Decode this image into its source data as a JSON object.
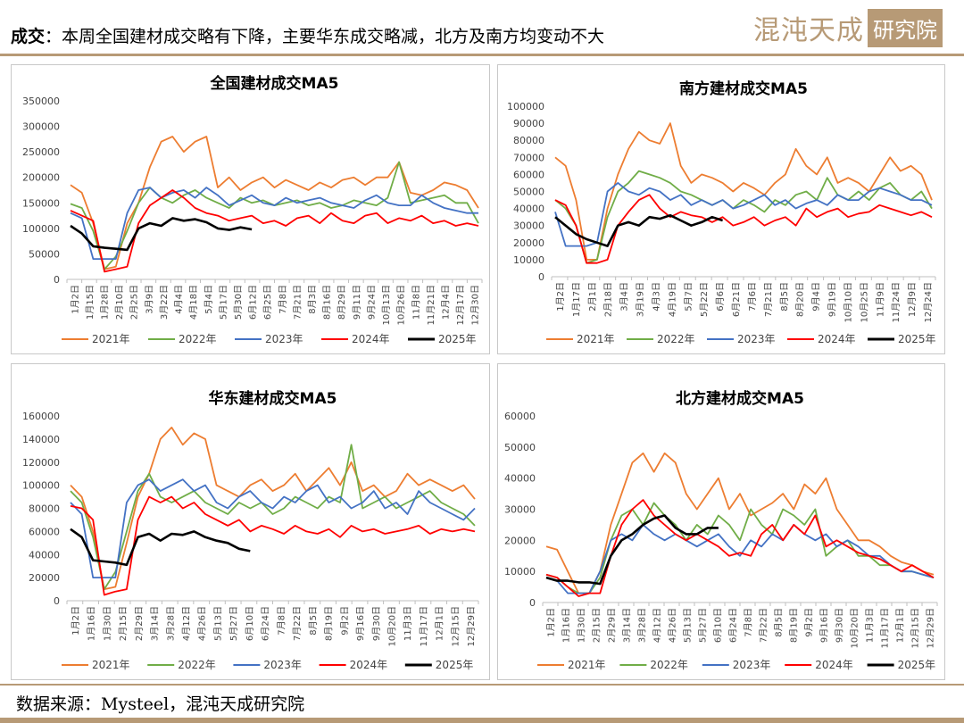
{
  "header": {
    "label": "成交",
    "colon": "：",
    "headline": "本周全国建材成交略有下降，主要华东成交略减，北方及南方均变动不大",
    "logo_text": "混沌天成",
    "logo_box": "研究院"
  },
  "footer": {
    "source": "数据来源：Mysteel，混沌天成研究院"
  },
  "colors": {
    "2021年": "#ed7d31",
    "2022年": "#70ad47",
    "2023年": "#4472c4",
    "2024年": "#ff0000",
    "2025年": "#000000",
    "accent": "#b79a76"
  },
  "chart_data": [
    {
      "type": "line",
      "title": "全国建材成交MA5",
      "ylim": [
        0,
        350000
      ],
      "yticks": [
        0,
        50000,
        100000,
        150000,
        200000,
        250000,
        300000,
        350000
      ],
      "x_tick_labels": [
        "1月2日",
        "1月15日",
        "1月28日",
        "2月10日",
        "2月25日",
        "3月9日",
        "3月22日",
        "4月4日",
        "4月18日",
        "5月4日",
        "5月17日",
        "5月30日",
        "6月12日",
        "6月25日",
        "7月8日",
        "7月21日",
        "8月3日",
        "8月16日",
        "8月29日",
        "9月11日",
        "9月24日",
        "10月13日",
        "10月26日",
        "11月8日",
        "11月21日",
        "12月4日",
        "12月17日",
        "12月30日"
      ],
      "legend": "bottom",
      "series": [
        {
          "name": "2021年",
          "values": [
            185000,
            170000,
            110000,
            20000,
            25000,
            110000,
            150000,
            220000,
            270000,
            280000,
            250000,
            270000,
            280000,
            180000,
            200000,
            175000,
            190000,
            200000,
            180000,
            195000,
            185000,
            175000,
            190000,
            180000,
            195000,
            200000,
            185000,
            200000,
            200000,
            230000,
            170000,
            165000,
            175000,
            190000,
            185000,
            175000,
            140000
          ]
        },
        {
          "name": "2022年",
          "values": [
            148000,
            140000,
            95000,
            20000,
            45000,
            95000,
            150000,
            180000,
            160000,
            150000,
            165000,
            175000,
            160000,
            150000,
            140000,
            160000,
            150000,
            155000,
            145000,
            150000,
            155000,
            145000,
            150000,
            140000,
            145000,
            155000,
            150000,
            145000,
            160000,
            230000,
            150000,
            155000,
            160000,
            165000,
            150000,
            150000,
            110000
          ]
        },
        {
          "name": "2023年",
          "values": [
            130000,
            120000,
            40000,
            40000,
            40000,
            130000,
            175000,
            180000,
            160000,
            170000,
            175000,
            160000,
            180000,
            165000,
            145000,
            155000,
            165000,
            150000,
            145000,
            160000,
            150000,
            155000,
            160000,
            150000,
            145000,
            140000,
            155000,
            165000,
            150000,
            145000,
            145000,
            165000,
            150000,
            140000,
            135000,
            130000,
            130000
          ]
        },
        {
          "name": "2024年",
          "values": [
            135000,
            125000,
            115000,
            15000,
            20000,
            25000,
            110000,
            145000,
            160000,
            175000,
            160000,
            140000,
            130000,
            125000,
            115000,
            120000,
            125000,
            110000,
            115000,
            105000,
            120000,
            125000,
            110000,
            130000,
            115000,
            110000,
            125000,
            130000,
            110000,
            120000,
            115000,
            125000,
            110000,
            115000,
            105000,
            110000,
            105000
          ]
        },
        {
          "name": "2025年",
          "values": [
            105000,
            90000,
            65000,
            62000,
            60000,
            58000,
            100000,
            110000,
            105000,
            120000,
            115000,
            118000,
            112000,
            100000,
            97000,
            102000,
            98000
          ]
        }
      ]
    },
    {
      "type": "line",
      "title": "南方建材成交MA5",
      "ylim": [
        0,
        100000
      ],
      "yticks": [
        0,
        10000,
        20000,
        30000,
        40000,
        50000,
        60000,
        70000,
        80000,
        90000,
        100000
      ],
      "x_tick_labels": [
        "1月2日",
        "1月17日",
        "2月1日",
        "2月18日",
        "3月4日",
        "3月19日",
        "4月3日",
        "4月19日",
        "5月7日",
        "5月22日",
        "6月6日",
        "6月21日",
        "7月6日",
        "7月21日",
        "8月5日",
        "8月20日",
        "9月4日",
        "9月19日",
        "10月10日",
        "10月25日",
        "11月9日",
        "11月24日",
        "12月9日",
        "12月24日"
      ],
      "legend": "bottom",
      "series": [
        {
          "name": "2021年",
          "values": [
            70000,
            65000,
            45000,
            10000,
            10000,
            40000,
            60000,
            75000,
            85000,
            80000,
            78000,
            90000,
            65000,
            55000,
            60000,
            58000,
            55000,
            50000,
            55000,
            52000,
            48000,
            55000,
            60000,
            75000,
            65000,
            60000,
            70000,
            55000,
            58000,
            55000,
            50000,
            60000,
            70000,
            62000,
            65000,
            60000,
            45000
          ]
        },
        {
          "name": "2022年",
          "values": [
            45000,
            40000,
            30000,
            8000,
            10000,
            35000,
            50000,
            55000,
            62000,
            60000,
            58000,
            55000,
            50000,
            48000,
            45000,
            42000,
            45000,
            40000,
            45000,
            42000,
            38000,
            45000,
            42000,
            48000,
            50000,
            45000,
            58000,
            48000,
            45000,
            50000,
            45000,
            52000,
            55000,
            48000,
            45000,
            50000,
            40000
          ]
        },
        {
          "name": "2023年",
          "values": [
            38000,
            18000,
            18000,
            18000,
            20000,
            50000,
            55000,
            50000,
            48000,
            52000,
            50000,
            45000,
            48000,
            42000,
            45000,
            42000,
            45000,
            40000,
            42000,
            45000,
            48000,
            42000,
            45000,
            40000,
            43000,
            45000,
            42000,
            48000,
            45000,
            45000,
            50000,
            52000,
            50000,
            48000,
            45000,
            45000,
            42000
          ]
        },
        {
          "name": "2024年",
          "values": [
            45000,
            42000,
            30000,
            8000,
            8000,
            10000,
            30000,
            38000,
            45000,
            48000,
            40000,
            35000,
            38000,
            36000,
            35000,
            32000,
            35000,
            30000,
            32000,
            35000,
            30000,
            33000,
            35000,
            30000,
            40000,
            35000,
            38000,
            40000,
            35000,
            37000,
            38000,
            42000,
            40000,
            38000,
            36000,
            38000,
            35000
          ]
        },
        {
          "name": "2025年",
          "values": [
            35000,
            30000,
            25000,
            22000,
            20000,
            18000,
            30000,
            32000,
            30000,
            35000,
            34000,
            36000,
            33000,
            30000,
            32000,
            35000,
            33000
          ]
        }
      ]
    },
    {
      "type": "line",
      "title": "华东建材成交MA5",
      "ylim": [
        0,
        160000
      ],
      "yticks": [
        0,
        20000,
        40000,
        60000,
        80000,
        100000,
        120000,
        140000,
        160000
      ],
      "x_tick_labels": [
        "1月2日",
        "1月16日",
        "1月30日",
        "2月15日",
        "2月29日",
        "3月14日",
        "3月28日",
        "4月12日",
        "4月26日",
        "5月13日",
        "5月27日",
        "6月10日",
        "6月24日",
        "7月8日",
        "7月22日",
        "8月5日",
        "8月19日",
        "9月2日",
        "9月16日",
        "9月30日",
        "10月20日",
        "11月3日",
        "11月17日",
        "12月1日",
        "12月15日",
        "12月29日"
      ],
      "legend": "bottom",
      "series": [
        {
          "name": "2021年",
          "values": [
            100000,
            90000,
            60000,
            10000,
            12000,
            50000,
            90000,
            110000,
            140000,
            150000,
            135000,
            145000,
            140000,
            100000,
            95000,
            90000,
            100000,
            105000,
            95000,
            100000,
            110000,
            95000,
            105000,
            115000,
            100000,
            120000,
            95000,
            100000,
            90000,
            95000,
            110000,
            100000,
            105000,
            100000,
            95000,
            100000,
            88000
          ]
        },
        {
          "name": "2022年",
          "values": [
            95000,
            85000,
            55000,
            10000,
            25000,
            60000,
            95000,
            110000,
            90000,
            85000,
            90000,
            95000,
            85000,
            80000,
            75000,
            85000,
            80000,
            85000,
            75000,
            80000,
            90000,
            85000,
            80000,
            90000,
            85000,
            135000,
            80000,
            85000,
            90000,
            80000,
            85000,
            90000,
            95000,
            85000,
            80000,
            75000,
            65000
          ]
        },
        {
          "name": "2023年",
          "values": [
            85000,
            75000,
            20000,
            20000,
            20000,
            85000,
            100000,
            105000,
            95000,
            100000,
            105000,
            95000,
            100000,
            85000,
            80000,
            90000,
            95000,
            85000,
            80000,
            90000,
            85000,
            95000,
            100000,
            85000,
            90000,
            80000,
            85000,
            95000,
            80000,
            85000,
            75000,
            95000,
            85000,
            80000,
            75000,
            70000,
            80000
          ]
        },
        {
          "name": "2024年",
          "values": [
            82000,
            80000,
            70000,
            5000,
            8000,
            10000,
            70000,
            90000,
            85000,
            90000,
            80000,
            85000,
            75000,
            70000,
            65000,
            70000,
            60000,
            65000,
            62000,
            58000,
            65000,
            60000,
            58000,
            62000,
            55000,
            65000,
            60000,
            62000,
            58000,
            60000,
            62000,
            65000,
            58000,
            62000,
            60000,
            62000,
            60000
          ]
        },
        {
          "name": "2025年",
          "values": [
            62000,
            55000,
            35000,
            34000,
            33000,
            31000,
            55000,
            58000,
            52000,
            58000,
            57000,
            60000,
            55000,
            52000,
            50000,
            45000,
            43000
          ]
        }
      ]
    },
    {
      "type": "line",
      "title": "北方建材成交MA5",
      "ylim": [
        0,
        60000
      ],
      "yticks": [
        0,
        10000,
        20000,
        30000,
        40000,
        50000,
        60000
      ],
      "x_tick_labels": [
        "1月2日",
        "1月16日",
        "1月30日",
        "2月15日",
        "2月29日",
        "3月14日",
        "3月28日",
        "4月12日",
        "4月26日",
        "5月13日",
        "5月27日",
        "6月10日",
        "6月24日",
        "7月8日",
        "7月22日",
        "8月5日",
        "8月19日",
        "9月2日",
        "9月16日",
        "9月30日",
        "10月20日",
        "11月3日",
        "11月17日",
        "12月1日",
        "12月15日",
        "12月29日"
      ],
      "legend": "bottom",
      "series": [
        {
          "name": "2021年",
          "values": [
            18000,
            17000,
            10000,
            3000,
            3000,
            10000,
            25000,
            35000,
            45000,
            48000,
            42000,
            48000,
            45000,
            35000,
            30000,
            35000,
            40000,
            30000,
            35000,
            28000,
            30000,
            32000,
            35000,
            30000,
            38000,
            35000,
            40000,
            30000,
            25000,
            20000,
            20000,
            18000,
            15000,
            13000,
            12000,
            10000,
            9000
          ]
        },
        {
          "name": "2022年",
          "values": [
            9000,
            8000,
            5000,
            3000,
            3000,
            8000,
            20000,
            28000,
            30000,
            25000,
            32000,
            28000,
            25000,
            20000,
            25000,
            22000,
            28000,
            25000,
            20000,
            30000,
            25000,
            22000,
            30000,
            28000,
            25000,
            30000,
            15000,
            18000,
            20000,
            15000,
            15000,
            12000,
            12000,
            10000,
            10000,
            9000,
            8000
          ]
        },
        {
          "name": "2023年",
          "values": [
            8000,
            7000,
            3000,
            3000,
            3000,
            10000,
            20000,
            22000,
            20000,
            25000,
            22000,
            20000,
            22000,
            20000,
            18000,
            20000,
            22000,
            18000,
            15000,
            20000,
            18000,
            22000,
            20000,
            25000,
            22000,
            20000,
            22000,
            18000,
            20000,
            18000,
            15000,
            15000,
            12000,
            10000,
            10000,
            9000,
            8000
          ]
        },
        {
          "name": "2024年",
          "values": [
            9000,
            8000,
            5000,
            2000,
            3000,
            3000,
            15000,
            25000,
            30000,
            33000,
            28000,
            25000,
            22000,
            20000,
            22000,
            20000,
            18000,
            15000,
            16000,
            15000,
            22000,
            25000,
            20000,
            25000,
            22000,
            28000,
            18000,
            20000,
            18000,
            16000,
            15000,
            14000,
            12000,
            10000,
            12000,
            10000,
            8000
          ]
        },
        {
          "name": "2025年",
          "values": [
            8000,
            7000,
            7000,
            6500,
            6500,
            6000,
            15000,
            20000,
            22000,
            25000,
            27000,
            28000,
            24000,
            22000,
            22000,
            24000,
            24000
          ]
        }
      ]
    }
  ]
}
